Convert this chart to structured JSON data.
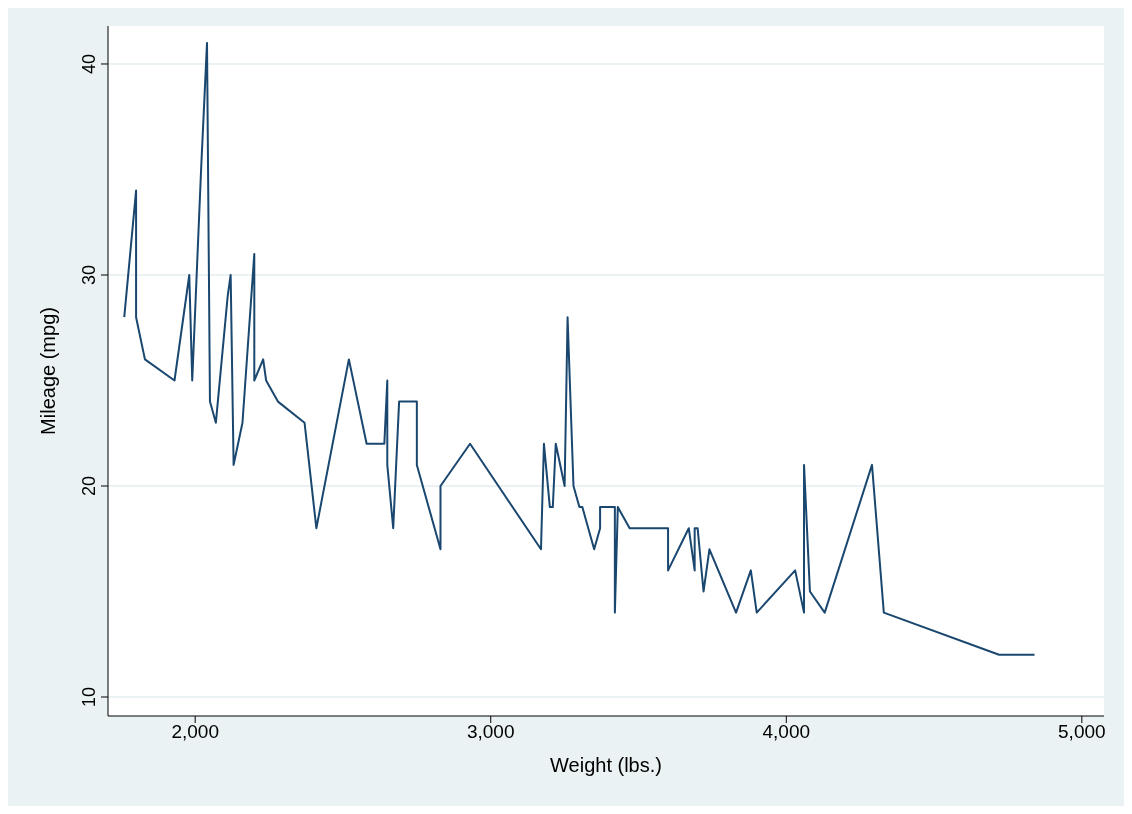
{
  "chart_data": {
    "type": "line",
    "xlabel": "Weight (lbs.)",
    "ylabel": "Mileage (mpg)",
    "xlim": [
      1705,
      5075
    ],
    "xticks": [
      {
        "value": 2000,
        "label": "2,000"
      },
      {
        "value": 3000,
        "label": "3,000"
      },
      {
        "value": 4000,
        "label": "4,000"
      },
      {
        "value": 5000,
        "label": "5,000"
      }
    ],
    "ylim": [
      9.1,
      41.8
    ],
    "yticks": [
      10,
      20,
      30,
      40
    ],
    "grid": "y",
    "marker": "none",
    "line_style": "solid",
    "x": [
      1760,
      1800,
      1800,
      1830,
      1930,
      1980,
      1990,
      2020,
      2040,
      2050,
      2070,
      2110,
      2120,
      2130,
      2160,
      2200,
      2200,
      2230,
      2240,
      2280,
      2370,
      2410,
      2520,
      2580,
      2640,
      2650,
      2650,
      2670,
      2690,
      2730,
      2750,
      2750,
      2830,
      2830,
      2930,
      3170,
      3180,
      3200,
      3210,
      3220,
      3250,
      3260,
      3280,
      3300,
      3310,
      3330,
      3350,
      3370,
      3370,
      3400,
      3420,
      3420,
      3430,
      3470,
      3600,
      3600,
      3670,
      3690,
      3690,
      3700,
      3720,
      3740,
      3830,
      3880,
      3900,
      4030,
      4060,
      4060,
      4080,
      4130,
      4290,
      4330,
      4720,
      4840
    ],
    "series": [
      {
        "color": "#1a476f",
        "values": [
          28,
          34,
          28,
          26,
          25,
          30,
          25,
          35,
          41,
          24,
          23,
          29,
          30,
          21,
          23,
          31,
          25,
          26,
          25,
          24,
          23,
          18,
          26,
          22,
          22,
          25,
          21,
          18,
          24,
          24,
          24,
          21,
          17,
          20,
          22,
          17,
          22,
          19,
          19,
          22,
          20,
          28,
          20,
          19,
          19,
          18,
          17,
          18,
          19,
          19,
          19,
          14,
          19,
          18,
          18,
          16,
          18,
          16,
          18,
          18,
          15,
          17,
          14,
          16,
          14,
          16,
          14,
          21,
          15,
          14,
          21,
          14,
          12,
          12
        ]
      }
    ]
  }
}
